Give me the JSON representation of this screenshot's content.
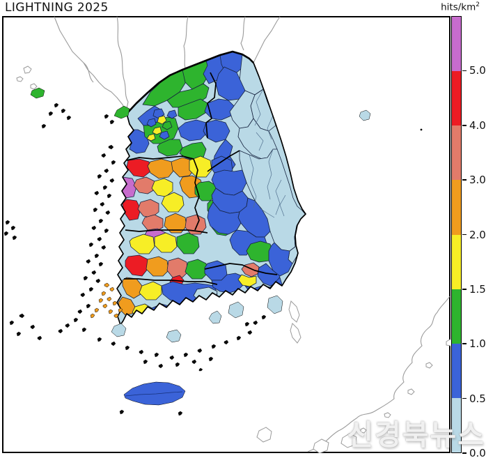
{
  "title": "LIGHTNING 2025",
  "colorbar": {
    "unit_label": "hits/km",
    "unit_exponent": "2",
    "ticks_top_to_bottom": [
      "5.0",
      "4.0",
      "3.0",
      "2.0",
      "1.5",
      "1.0",
      "0.5",
      "0.0"
    ],
    "segments_top_to_bottom": [
      {
        "range": "> 5.0",
        "color": "#c76ccd"
      },
      {
        "range": "4.0 - 5.0",
        "color": "#ec1c24"
      },
      {
        "range": "3.0 - 4.0",
        "color": "#e27b6a"
      },
      {
        "range": "2.0 - 3.0",
        "color": "#f09c1e"
      },
      {
        "range": "1.5 - 2.0",
        "color": "#f7ee26"
      },
      {
        "range": "1.0 - 1.5",
        "color": "#2eb42e"
      },
      {
        "range": "0.5 - 1.0",
        "color": "#3b63d8"
      },
      {
        "range": "0.0 - 0.5",
        "color": "#b9d9e6"
      }
    ]
  },
  "watermark": {
    "text": "신경북뉴스"
  },
  "map": {
    "region": "South Korea administrative districts",
    "palette_by_bin": [
      "#b9d9e6",
      "#3b63d8",
      "#2eb42e",
      "#f7ee26",
      "#f09c1e",
      "#e27b6a",
      "#ec1c24",
      "#c76ccd"
    ],
    "outline_colors": {
      "coastline": "#000000",
      "district_border": "#16233f",
      "foreign_coastline": "#9a9a9a"
    }
  },
  "chart_data": {
    "type": "heatmap",
    "title": "LIGHTNING 2025",
    "unit": "hits/km²",
    "scale_boundaries": [
      0.0,
      0.5,
      1.0,
      1.5,
      2.0,
      3.0,
      4.0,
      5.0
    ],
    "scale_colors_low_to_high": [
      "#b9d9e6",
      "#3b63d8",
      "#2eb42e",
      "#f7ee26",
      "#f09c1e",
      "#e27b6a",
      "#ec1c24",
      "#c76ccd"
    ],
    "legend_position": "right",
    "region_estimates": [
      {
        "region": "Gangwon and NE coast",
        "value_bin": "0.0-0.5 with 0.5-1.0 patches"
      },
      {
        "region": "Gyeonggi / Seoul (NW)",
        "value_bin": "0.5-1.5, small 1.5-2.0 pockets in Seoul"
      },
      {
        "region": "Chungnam west coast",
        "value_bin": "2.0-5.0 with >5.0 pockets"
      },
      {
        "region": "Jeonbuk",
        "value_bin": "1.5-5.0 mixed hot colors"
      },
      {
        "region": "Jeonnam",
        "value_bin": "0.0-3.0, coast 0.0-0.5"
      },
      {
        "region": "Gyeongbuk east coast",
        "value_bin": "0.0-0.5"
      },
      {
        "region": "Gyeongbuk / Gyeongnam interior",
        "value_bin": "0.5-1.5"
      },
      {
        "region": "Gimhae-Busan pocket",
        "value_bin": "1.5-4.0"
      },
      {
        "region": "Jeju",
        "value_bin": "0.5-1.0"
      }
    ]
  }
}
